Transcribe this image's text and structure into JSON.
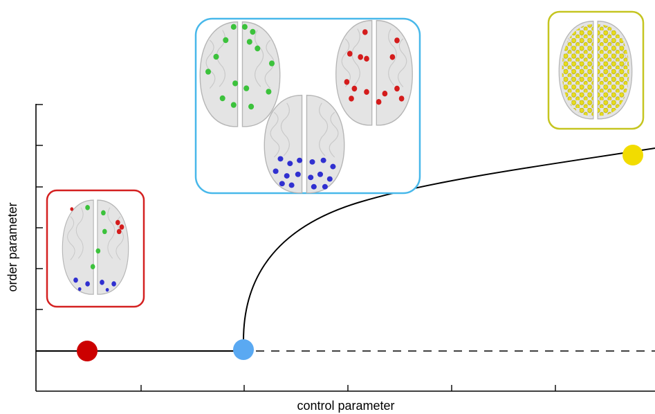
{
  "axes": {
    "y_label": "order parameter",
    "x_label": "control parameter"
  }
}
